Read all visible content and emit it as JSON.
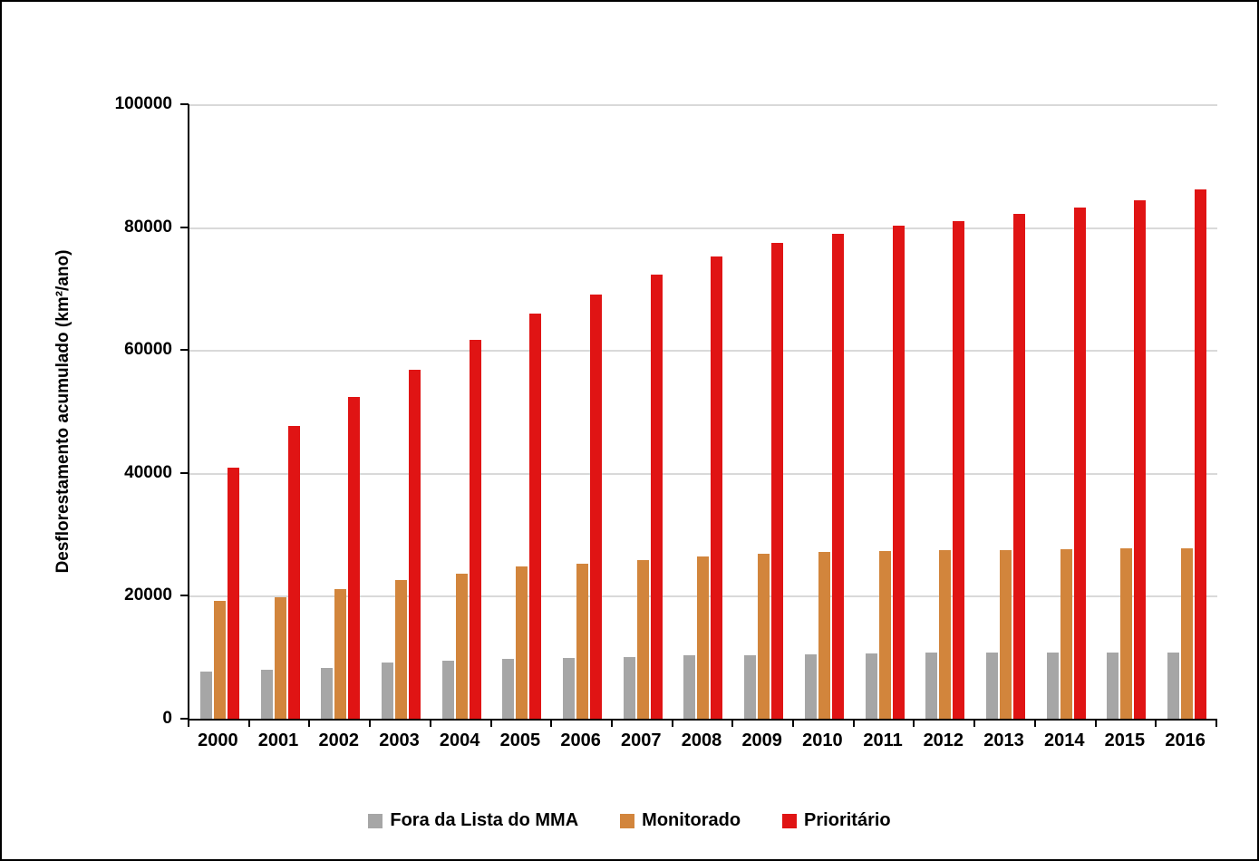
{
  "chart_data": {
    "type": "bar",
    "title": "",
    "xlabel": "",
    "ylabel": "Desflorestamento acumulado (km²/ano)",
    "ylim": [
      0,
      100000
    ],
    "ytick_step": 20000,
    "ytick_labels": [
      "0",
      "20000",
      "40000",
      "60000",
      "80000",
      "100000"
    ],
    "grid": true,
    "legend_position": "bottom",
    "categories": [
      "2000",
      "2001",
      "2002",
      "2003",
      "2004",
      "2005",
      "2006",
      "2007",
      "2008",
      "2009",
      "2010",
      "2011",
      "2012",
      "2013",
      "2014",
      "2015",
      "2016"
    ],
    "series": [
      {
        "name": "Fora da Lista do MMA",
        "color": "#A6A6A6",
        "values": [
          7700,
          8000,
          8300,
          9200,
          9500,
          9700,
          9900,
          10100,
          10300,
          10400,
          10500,
          10600,
          10700,
          10700,
          10800,
          10800,
          10800
        ]
      },
      {
        "name": "Monitorado",
        "color": "#D2853C",
        "values": [
          19200,
          19800,
          21100,
          22600,
          23600,
          24800,
          25200,
          25800,
          26400,
          26800,
          27100,
          27300,
          27400,
          27500,
          27600,
          27700,
          27700
        ]
      },
      {
        "name": "Prioritário",
        "color": "#E01414",
        "values": [
          40800,
          47700,
          52300,
          56800,
          61600,
          66000,
          69100,
          72200,
          75200,
          77400,
          78900,
          80200,
          81000,
          82200,
          83200,
          84400,
          86200
        ]
      }
    ]
  },
  "colors": {
    "background": "#FFFFFF",
    "border": "#000000",
    "axis": "#000000",
    "gridline": "#D9D9D9",
    "text": "#000000"
  }
}
